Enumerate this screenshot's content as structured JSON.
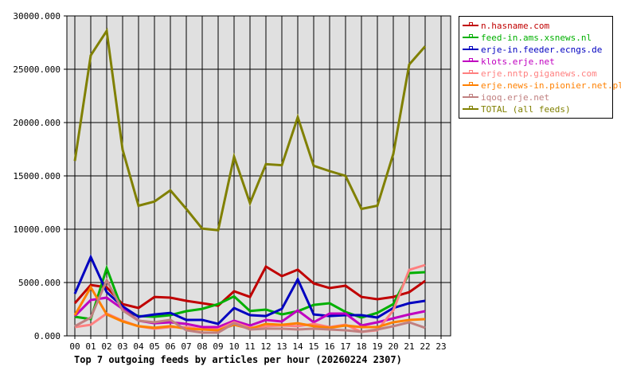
{
  "chart_data": {
    "type": "line",
    "title": "Top 7 outgoing feeds by articles per hour (20260224 2307)",
    "xlabel": "",
    "ylabel": "",
    "ylim": [
      0,
      30000
    ],
    "grid": true,
    "legend_position": "right",
    "categories": [
      "00",
      "01",
      "02",
      "03",
      "04",
      "05",
      "06",
      "07",
      "08",
      "09",
      "10",
      "11",
      "12",
      "13",
      "14",
      "15",
      "16",
      "17",
      "18",
      "19",
      "20",
      "21",
      "22",
      "23"
    ],
    "y_ticks": [
      "0.000",
      "5000.000",
      "10000.000",
      "15000.000",
      "20000.000",
      "25000.000",
      "30000.000"
    ],
    "series": [
      {
        "name": "n.hasname.com",
        "color": "#c00000",
        "values": [
          3060,
          4770,
          4550,
          2980,
          2610,
          3650,
          3580,
          3280,
          3060,
          2830,
          4180,
          3650,
          6490,
          5600,
          6200,
          4920,
          4480,
          4700,
          3650,
          3430,
          3650,
          4100,
          5150
        ]
      },
      {
        "name": "feed-in.ams.xsnews.nl",
        "color": "#00b000",
        "values": [
          1790,
          1570,
          6340,
          2390,
          1860,
          1790,
          1940,
          2310,
          2530,
          2980,
          3700,
          2330,
          2460,
          2010,
          2310,
          2900,
          3060,
          2240,
          1720,
          2160,
          2980,
          5890,
          5970
        ]
      },
      {
        "name": "erje-in.feeder.ecngs.de",
        "color": "#0000c0",
        "values": [
          3950,
          7390,
          4100,
          2760,
          1790,
          2010,
          2160,
          1490,
          1490,
          1120,
          2610,
          1940,
          1860,
          2530,
          5300,
          2010,
          1860,
          1940,
          1940,
          1720,
          2610,
          3060,
          3280
        ]
      },
      {
        "name": "klots.erje.net",
        "color": "#c000c0",
        "values": [
          1860,
          3360,
          3580,
          2530,
          1420,
          1190,
          1270,
          1120,
          820,
          820,
          1420,
          970,
          1490,
          1340,
          2390,
          1270,
          2090,
          2090,
          970,
          1270,
          1640,
          2010,
          2310
        ]
      },
      {
        "name": "erje.nntp.giganews.com",
        "color": "#ff8080",
        "values": [
          820,
          1040,
          2090,
          1420,
          900,
          670,
          820,
          820,
          600,
          600,
          1270,
          750,
          900,
          970,
          900,
          1120,
          820,
          1040,
          370,
          520,
          2390,
          6190,
          6640
        ]
      },
      {
        "name": "erje.news-in.pionier.net.pl",
        "color": "#ff8000",
        "values": [
          1940,
          4550,
          2010,
          1340,
          900,
          750,
          900,
          670,
          600,
          520,
          1040,
          670,
          1120,
          1040,
          1190,
          900,
          750,
          970,
          820,
          820,
          1270,
          1490,
          1570
        ]
      },
      {
        "name": "iqoq.erje.net",
        "color": "#c08080",
        "values": [
          900,
          1720,
          5220,
          2390,
          1420,
          1270,
          1490,
          520,
          300,
          300,
          1190,
          600,
          670,
          670,
          600,
          670,
          600,
          520,
          370,
          600,
          900,
          1270,
          750
        ]
      },
      {
        "name": "TOTAL (all feeds)",
        "color": "#808000",
        "values": [
          16400,
          26300,
          28600,
          17450,
          12200,
          12600,
          13650,
          11900,
          10050,
          9900,
          16800,
          12450,
          16100,
          16000,
          20500,
          15950,
          15450,
          15000,
          11900,
          12200,
          17050,
          25450,
          27150
        ]
      }
    ]
  },
  "legend": {
    "items": [
      {
        "label": "n.hasname.com",
        "color": "#c00000"
      },
      {
        "label": "feed-in.ams.xsnews.nl",
        "color": "#00b000"
      },
      {
        "label": "erje-in.feeder.ecngs.de",
        "color": "#0000c0"
      },
      {
        "label": "klots.erje.net",
        "color": "#c000c0"
      },
      {
        "label": "erje.nntp.giganews.com",
        "color": "#ff8080"
      },
      {
        "label": "erje.news-in.pionier.net.pl",
        "color": "#ff8000"
      },
      {
        "label": "iqoq.erje.net",
        "color": "#c08080"
      },
      {
        "label": "TOTAL (all feeds)",
        "color": "#808000"
      }
    ]
  },
  "colors": {
    "plot_background": "#e0e0e0",
    "grid": "#000000",
    "page_background": "#ffffff"
  }
}
